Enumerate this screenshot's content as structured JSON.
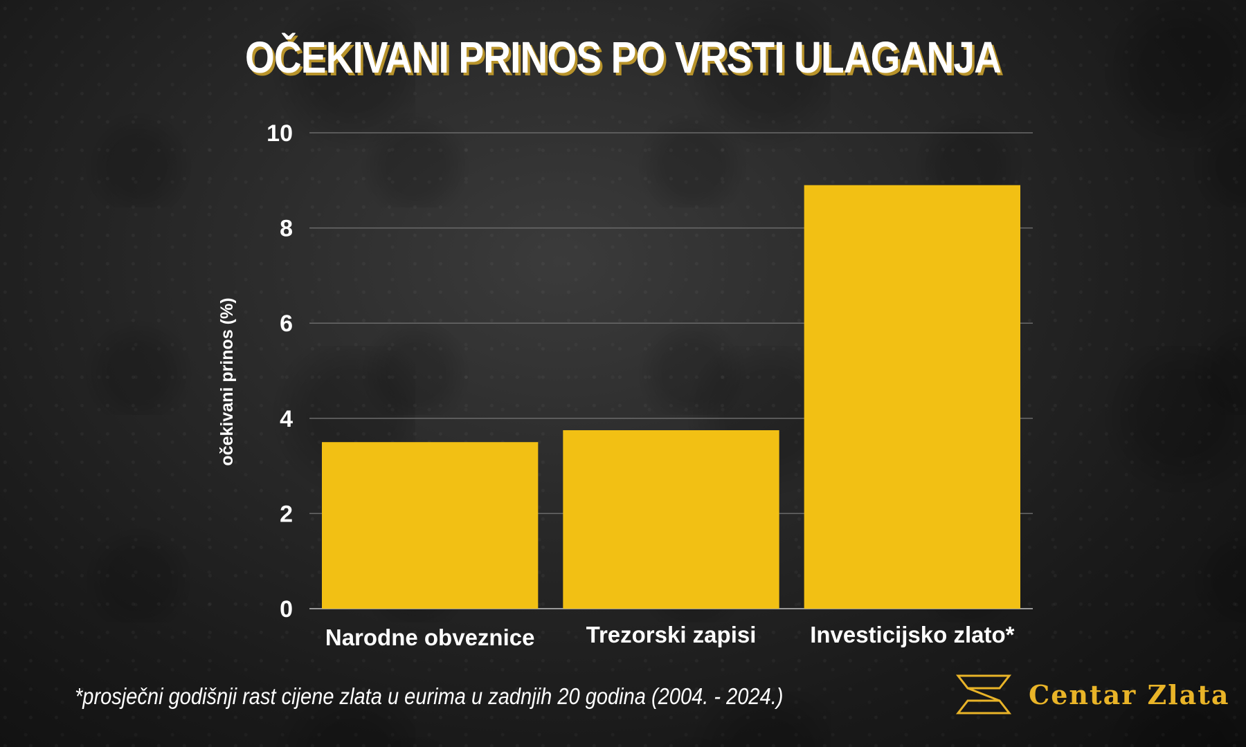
{
  "title": "OČEKIVANI PRINOS PO VRSTI ULAGANJA",
  "footnote": "*prosječni godišnji rast cijene zlata u eurima u zadnjih 20 godina (2004. - 2024.)",
  "brand": {
    "name": "Centar Zlata",
    "icon": "gold-bar-logo-icon"
  },
  "colors": {
    "bar": "#f2c014",
    "accent": "#e9b428",
    "title_shadow": "#b8932a",
    "grid": "#6b6b6b"
  },
  "chart_data": {
    "type": "bar",
    "title": "OČEKIVANI PRINOS PO VRSTI ULAGANJA",
    "xlabel": "",
    "ylabel": "očekivani prinos (%)",
    "categories": [
      "Narodne obveznice",
      "Trezorski zapisi",
      "Investicijsko zlato*"
    ],
    "values": [
      3.5,
      3.75,
      8.9
    ],
    "ylim": [
      0,
      10
    ],
    "yticks": [
      0,
      2,
      4,
      6,
      8,
      10
    ],
    "grid": true,
    "legend": "none"
  }
}
